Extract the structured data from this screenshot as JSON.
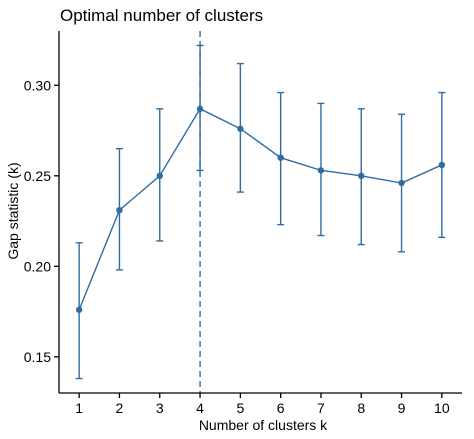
{
  "chart_data": {
    "type": "line",
    "title": "Optimal number of clusters",
    "xlabel": "Number of clusters k",
    "ylabel": "Gap statistic (k)",
    "x": [
      1,
      2,
      3,
      4,
      5,
      6,
      7,
      8,
      9,
      10
    ],
    "x_tick_labels": [
      "1",
      "2",
      "3",
      "4",
      "5",
      "6",
      "7",
      "8",
      "9",
      "10"
    ],
    "y_ticks": [
      0.15,
      0.2,
      0.25,
      0.3
    ],
    "y_tick_labels": [
      "0.15",
      "0.20",
      "0.25",
      "0.30"
    ],
    "xlim": [
      0.5,
      10.5
    ],
    "ylim": [
      0.13,
      0.33
    ],
    "series": [
      {
        "values": [
          0.176,
          0.231,
          0.25,
          0.287,
          0.276,
          0.26,
          0.253,
          0.25,
          0.246,
          0.256
        ],
        "error_upper": [
          0.213,
          0.265,
          0.287,
          0.322,
          0.312,
          0.296,
          0.29,
          0.287,
          0.284,
          0.296
        ],
        "error_lower": [
          0.138,
          0.198,
          0.214,
          0.253,
          0.241,
          0.223,
          0.217,
          0.212,
          0.208,
          0.216
        ],
        "color": "#2E6DA4"
      }
    ],
    "optimal_k": 4,
    "vline_color": "#2E6DA4",
    "grid": false,
    "legend": "none"
  }
}
